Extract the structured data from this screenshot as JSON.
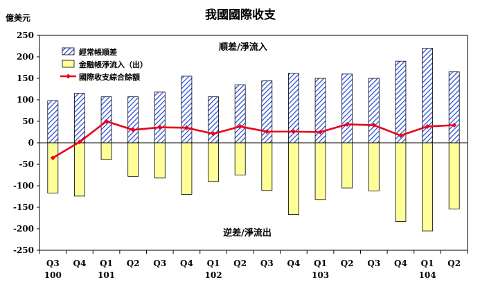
{
  "chart_data": {
    "type": "bar",
    "title": "我國國際收支",
    "unit_label": "億美元",
    "categories": [
      "Q3",
      "Q4",
      "Q1",
      "Q2",
      "Q3",
      "Q4",
      "Q1",
      "Q2",
      "Q3",
      "Q4",
      "Q1",
      "Q2",
      "Q3",
      "Q4",
      "Q1",
      "Q2"
    ],
    "year_labels": [
      {
        "label": "100",
        "index": 0
      },
      {
        "label": "101",
        "index": 2
      },
      {
        "label": "102",
        "index": 6
      },
      {
        "label": "103",
        "index": 10
      },
      {
        "label": "104",
        "index": 14
      }
    ],
    "ylim": [
      -250,
      250
    ],
    "yticks": [
      250,
      200,
      150,
      100,
      50,
      0,
      -50,
      -100,
      -150,
      -200,
      -250
    ],
    "series": [
      {
        "name": "經常帳順差",
        "kind": "bar",
        "style": "hatched-blue",
        "values": [
          98,
          115,
          107,
          107,
          118,
          155,
          107,
          135,
          144,
          162,
          150,
          160,
          150,
          190,
          220,
          165
        ]
      },
      {
        "name": "金融帳淨流入（出）",
        "kind": "bar",
        "style": "pale-yellow",
        "values": [
          -117,
          -124,
          -39,
          -78,
          -82,
          -120,
          -90,
          -75,
          -111,
          -167,
          -132,
          -105,
          -112,
          -183,
          -205,
          -154
        ]
      },
      {
        "name": "國際收支綜合餘額",
        "kind": "line",
        "color": "#e8001c",
        "values": [
          -35,
          2,
          50,
          30,
          36,
          35,
          21,
          38,
          26,
          26,
          25,
          43,
          41,
          17,
          38,
          41
        ]
      }
    ],
    "annotations": {
      "top": "順差/淨流入",
      "bottom": "逆差/淨流出"
    },
    "legend_position": "top-left",
    "grid": false
  }
}
